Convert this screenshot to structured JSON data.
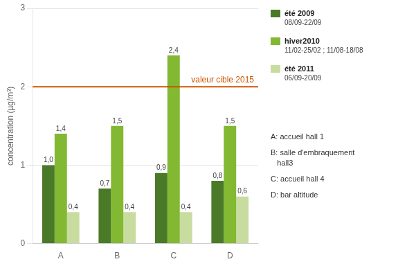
{
  "chart_data": {
    "type": "bar",
    "categories": [
      "A",
      "B",
      "C",
      "D"
    ],
    "series": [
      {
        "name": "été 2009\n08/09-22/09",
        "color": "#4a7a28",
        "values": [
          1.0,
          0.7,
          0.9,
          0.8
        ],
        "value_labels": [
          "1,0",
          "0,7",
          "0,9",
          "0,8"
        ]
      },
      {
        "name": "hiver2010\n11/02-25/02 ; 11/08-18/08",
        "color": "#82b832",
        "values": [
          1.4,
          1.5,
          2.4,
          1.5
        ],
        "value_labels": [
          "1,4",
          "1,5",
          "2,4",
          "1,5"
        ]
      },
      {
        "name": "été 2011\n06/09-20/09",
        "color": "#c8dca0",
        "values": [
          0.4,
          0.4,
          0.4,
          0.6
        ],
        "value_labels": [
          "0,4",
          "0,4",
          "0,4",
          "0,6"
        ]
      }
    ],
    "ylabel": "concentration (µg/m³)",
    "ylim": [
      0,
      3
    ],
    "yticks": [
      0,
      1,
      2,
      3
    ],
    "grid": true,
    "legend": "right",
    "data_labels": true,
    "hline": {
      "y": 2.0,
      "label": "valeur cible 2015",
      "color": "#cc5500"
    },
    "annotations": [
      "A: accueil hall 1",
      "B: salle d'embraquement\n   hall3",
      "C: accueil hall 4",
      "D: bar altitude"
    ]
  }
}
